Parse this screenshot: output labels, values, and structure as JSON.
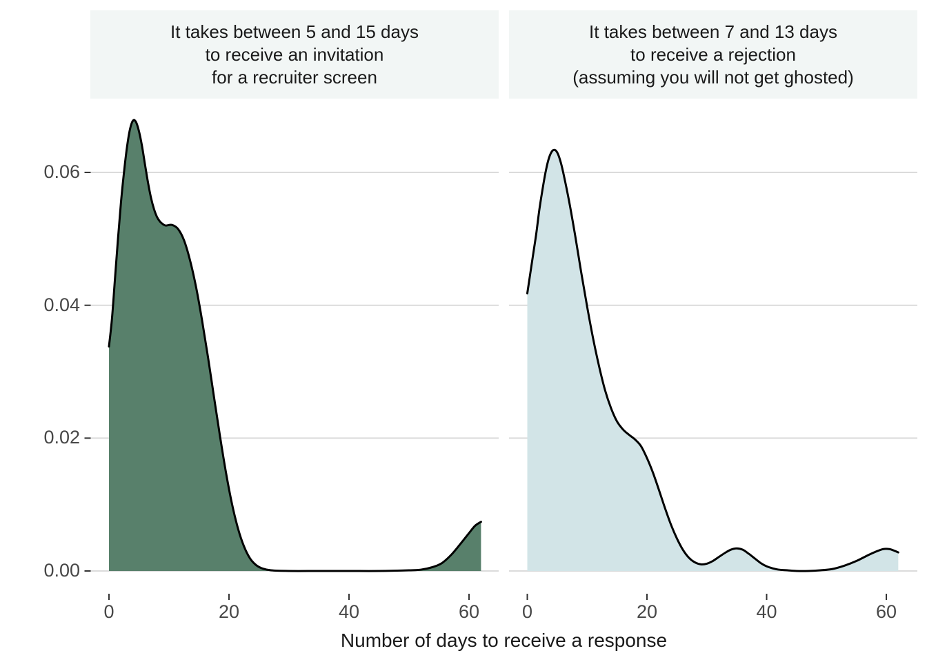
{
  "chart_data": {
    "type": "area",
    "subtype": "faceted-density",
    "xlabel": "Number of days to receive a response",
    "ylabel": "",
    "x_ticks": [
      0,
      20,
      40,
      60
    ],
    "x_tick_labels": [
      "0",
      "20",
      "40",
      "60"
    ],
    "y_ticks": [
      0.0,
      0.02,
      0.04,
      0.06
    ],
    "y_tick_labels": [
      "0.00",
      "0.02",
      "0.04",
      "0.06"
    ],
    "xlim": [
      -3,
      65
    ],
    "ylim": [
      0,
      0.0715
    ],
    "grid": "horizontal-major-only",
    "legend": "none",
    "facets": [
      {
        "title": "It takes between 5 and 15 days\nto receive an invitation\nfor a recruiter screen",
        "fill_color": "#58806B",
        "line_color": "#000000",
        "peak": {
          "x": 4,
          "y": 0.0678
        },
        "points": [
          [
            0,
            0.0338
          ],
          [
            0.5,
            0.038
          ],
          [
            1,
            0.044
          ],
          [
            1.5,
            0.05
          ],
          [
            2,
            0.0555
          ],
          [
            2.5,
            0.06
          ],
          [
            3,
            0.0638
          ],
          [
            3.5,
            0.0665
          ],
          [
            4,
            0.0678
          ],
          [
            4.5,
            0.0676
          ],
          [
            5,
            0.0662
          ],
          [
            5.5,
            0.064
          ],
          [
            6,
            0.0612
          ],
          [
            6.5,
            0.0585
          ],
          [
            7,
            0.0562
          ],
          [
            7.5,
            0.0545
          ],
          [
            8,
            0.0533
          ],
          [
            8.5,
            0.0526
          ],
          [
            9,
            0.0522
          ],
          [
            9.5,
            0.052
          ],
          [
            10.5,
            0.0521
          ],
          [
            11.5,
            0.0515
          ],
          [
            12.5,
            0.0498
          ],
          [
            13.5,
            0.0468
          ],
          [
            14.5,
            0.0428
          ],
          [
            15.5,
            0.0378
          ],
          [
            16.5,
            0.0322
          ],
          [
            17.5,
            0.0262
          ],
          [
            18.5,
            0.0203
          ],
          [
            19.5,
            0.0148
          ],
          [
            20.5,
            0.0101
          ],
          [
            21.5,
            0.0064
          ],
          [
            22.5,
            0.0037
          ],
          [
            23.5,
            0.0019
          ],
          [
            24.5,
            0.0009
          ],
          [
            25.5,
            0.0004
          ],
          [
            27,
            0.0001
          ],
          [
            30,
            0.0
          ],
          [
            35,
            0.0
          ],
          [
            40,
            0.0
          ],
          [
            45,
            0.0
          ],
          [
            50,
            0.0001
          ],
          [
            52,
            0.0002
          ],
          [
            54,
            0.0006
          ],
          [
            55.5,
            0.0012
          ],
          [
            57,
            0.0024
          ],
          [
            58.5,
            0.004
          ],
          [
            60,
            0.0057
          ],
          [
            61,
            0.0068
          ],
          [
            62,
            0.0074
          ]
        ]
      },
      {
        "title": "It takes between 7 and 13 days\nto receive a rejection\n(assuming you will not get ghosted)",
        "fill_color": "#D2E4E7",
        "line_color": "#000000",
        "peak": {
          "x": 4.5,
          "y": 0.0634
        },
        "points": [
          [
            0,
            0.0418
          ],
          [
            0.5,
            0.0448
          ],
          [
            1,
            0.0478
          ],
          [
            1.5,
            0.0508
          ],
          [
            2,
            0.0543
          ],
          [
            2.5,
            0.0572
          ],
          [
            3,
            0.0598
          ],
          [
            3.5,
            0.0618
          ],
          [
            4,
            0.063
          ],
          [
            4.5,
            0.0634
          ],
          [
            5,
            0.063
          ],
          [
            5.5,
            0.0618
          ],
          [
            6,
            0.06
          ],
          [
            7,
            0.0556
          ],
          [
            8,
            0.0505
          ],
          [
            9,
            0.045
          ],
          [
            10,
            0.0398
          ],
          [
            11,
            0.035
          ],
          [
            12,
            0.0308
          ],
          [
            13,
            0.0272
          ],
          [
            14,
            0.0245
          ],
          [
            15,
            0.0225
          ],
          [
            16,
            0.0213
          ],
          [
            17,
            0.0205
          ],
          [
            18,
            0.0198
          ],
          [
            19,
            0.0188
          ],
          [
            20,
            0.017
          ],
          [
            21,
            0.0148
          ],
          [
            22,
            0.0122
          ],
          [
            23,
            0.0095
          ],
          [
            24,
            0.007
          ],
          [
            25,
            0.0049
          ],
          [
            26,
            0.0032
          ],
          [
            27,
            0.002
          ],
          [
            28,
            0.0013
          ],
          [
            29,
            0.001
          ],
          [
            30,
            0.0011
          ],
          [
            31,
            0.0015
          ],
          [
            32,
            0.0021
          ],
          [
            33,
            0.0027
          ],
          [
            34,
            0.0032
          ],
          [
            35,
            0.0034
          ],
          [
            36,
            0.0032
          ],
          [
            37,
            0.0026
          ],
          [
            38,
            0.0019
          ],
          [
            39,
            0.0012
          ],
          [
            40,
            0.0007
          ],
          [
            41,
            0.0004
          ],
          [
            42,
            0.0002
          ],
          [
            43.5,
            0.0001
          ],
          [
            45,
            0.0
          ],
          [
            47,
            0.0
          ],
          [
            49,
            0.0001
          ],
          [
            51,
            0.0003
          ],
          [
            53,
            0.0008
          ],
          [
            55,
            0.0015
          ],
          [
            57,
            0.0024
          ],
          [
            58.5,
            0.003
          ],
          [
            59.5,
            0.0033
          ],
          [
            60.5,
            0.0033
          ],
          [
            61.2,
            0.0031
          ],
          [
            62,
            0.0028
          ]
        ]
      }
    ]
  },
  "colors": {
    "background": "#FFFFFF",
    "strip_background": "#F2F6F5",
    "gridline": "#DBDBDB",
    "tick_mark": "#333333",
    "tick_label": "#474747",
    "text": "#1A1A1A",
    "left_fill": "#58806B",
    "right_fill": "#D2E4E7",
    "curve_stroke": "#000000"
  }
}
